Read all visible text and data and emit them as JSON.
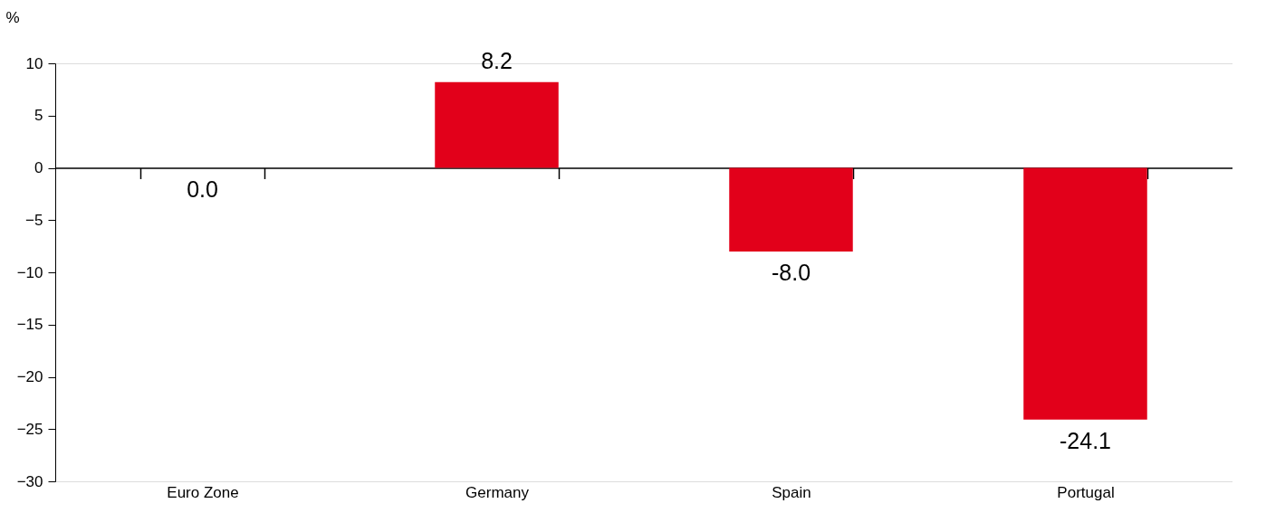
{
  "chart_data": {
    "type": "bar",
    "ylabel": "%",
    "categories": [
      "Euro Zone",
      "Germany",
      "Spain",
      "Portugal"
    ],
    "values": [
      0.0,
      8.2,
      -8.0,
      -24.1
    ],
    "value_labels": [
      "0.0",
      "8.2",
      "-8.0",
      "-24.1"
    ],
    "color": "#e2001a",
    "ylim": [
      -30,
      10
    ],
    "yticks": [
      -30,
      -25,
      -20,
      -15,
      -10,
      -5,
      0,
      5,
      10
    ]
  }
}
